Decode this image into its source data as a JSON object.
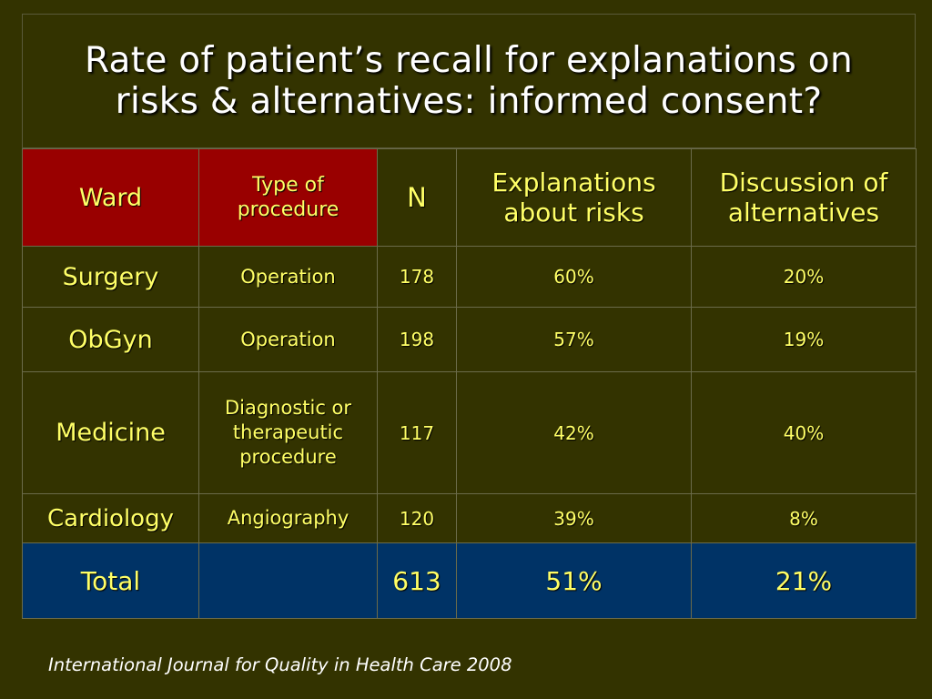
{
  "slide": {
    "title_line1": "Rate of patient’s recall for explanations on",
    "title_line2": "risks & alternatives: informed consent?",
    "source": "International Journal for Quality in Health Care 2008",
    "colors": {
      "background": "#333300",
      "header_accent": "#990000",
      "total_row": "#003366",
      "text": "#ffff66",
      "title_text": "#ffffff"
    }
  },
  "table": {
    "headers": {
      "ward": "Ward",
      "type_line1": "Type of",
      "type_line2": "procedure",
      "n": "N",
      "risks_line1": "Explanations",
      "risks_line2": "about risks",
      "alt_line1": "Discussion of",
      "alt_line2": "alternatives"
    },
    "rows": [
      {
        "ward": "Surgery",
        "proc_lines": [
          "Operation"
        ],
        "n": "178",
        "risks": "60%",
        "alternatives": "20%"
      },
      {
        "ward": "ObGyn",
        "proc_lines": [
          "Operation"
        ],
        "n": "198",
        "risks": "57%",
        "alternatives": "19%"
      },
      {
        "ward": "Medicine",
        "proc_lines": [
          "Diagnostic or",
          "therapeutic",
          "procedure"
        ],
        "n": "117",
        "risks": "42%",
        "alternatives": "40%"
      },
      {
        "ward": "Cardiology",
        "proc_lines": [
          "Angiography"
        ],
        "n": "120",
        "risks": "39%",
        "alternatives": "8%"
      }
    ],
    "total": {
      "label": "Total",
      "type": "",
      "n": "613",
      "risks": "51%",
      "alternatives": "21%"
    }
  }
}
